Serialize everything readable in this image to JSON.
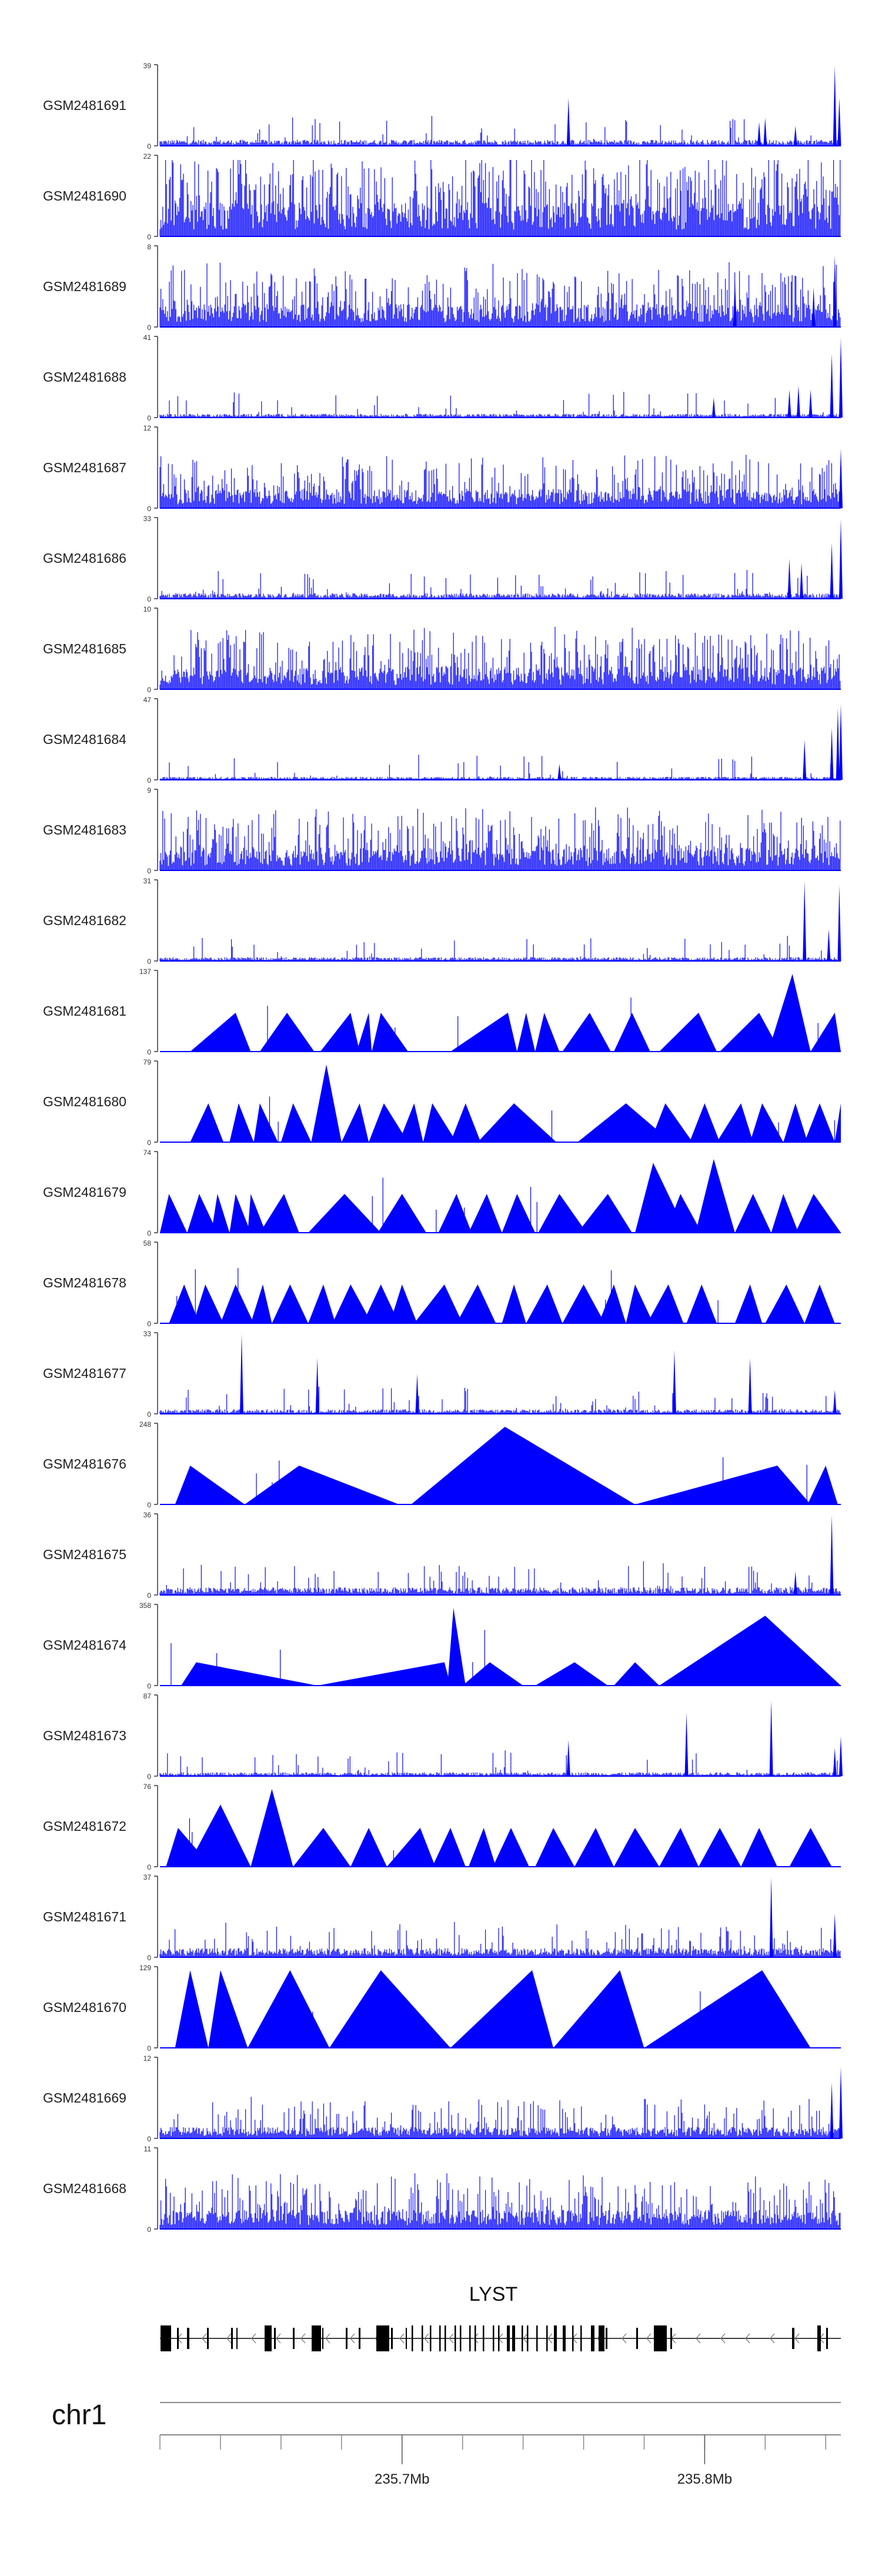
{
  "chart_data": {
    "type": "area",
    "title": "",
    "colors": {
      "signal": "#0000ff",
      "axis": "#000000",
      "gene": "#000000",
      "ideogram": "#888888",
      "label": "#222222"
    },
    "x_range": [
      235.62,
      235.845
    ],
    "tracks": [
      {
        "name": "GSM2481691",
        "ymax": "39",
        "ymin": "0",
        "style": "dense",
        "density": 0.06,
        "spikes": [
          [
            235.755,
            0.6
          ],
          [
            235.82,
            0.35
          ],
          [
            235.818,
            0.3
          ],
          [
            235.83,
            0.25
          ],
          [
            235.843,
            1.0
          ],
          [
            235.8445,
            0.6
          ]
        ],
        "baseline": 0.08
      },
      {
        "name": "GSM2481690",
        "ymax": "22",
        "ymin": "0",
        "style": "dense",
        "density": 0.5,
        "spikes": [],
        "baseline": 0.45
      },
      {
        "name": "GSM2481689",
        "ymax": "8",
        "ymin": "0",
        "style": "dense",
        "density": 0.35,
        "spikes": [
          [
            235.81,
            0.6
          ],
          [
            235.836,
            0.5
          ],
          [
            235.843,
            0.9
          ]
        ],
        "baseline": 0.3
      },
      {
        "name": "GSM2481688",
        "ymax": "41",
        "ymin": "0",
        "style": "dense",
        "density": 0.04,
        "spikes": [
          [
            235.803,
            0.25
          ],
          [
            235.828,
            0.35
          ],
          [
            235.831,
            0.4
          ],
          [
            235.835,
            0.35
          ],
          [
            235.842,
            0.8
          ],
          [
            235.845,
            1.0
          ]
        ],
        "baseline": 0.05
      },
      {
        "name": "GSM2481687",
        "ymax": "12",
        "ymin": "0",
        "style": "dense",
        "density": 0.3,
        "spikes": [
          [
            235.845,
            0.75
          ]
        ],
        "baseline": 0.25
      },
      {
        "name": "GSM2481686",
        "ymax": "33",
        "ymin": "0",
        "style": "dense",
        "density": 0.06,
        "spikes": [
          [
            235.828,
            0.5
          ],
          [
            235.832,
            0.45
          ],
          [
            235.842,
            0.7
          ],
          [
            235.845,
            1.0
          ]
        ],
        "baseline": 0.07
      },
      {
        "name": "GSM2481685",
        "ymax": "10",
        "ymin": "0",
        "style": "dense",
        "density": 0.35,
        "spikes": [],
        "baseline": 0.3
      },
      {
        "name": "GSM2481684",
        "ymax": "47",
        "ymin": "0",
        "style": "dense",
        "density": 0.04,
        "spikes": [
          [
            235.752,
            0.2
          ],
          [
            235.833,
            0.5
          ],
          [
            235.842,
            0.65
          ],
          [
            235.844,
            0.9
          ],
          [
            235.845,
            0.95
          ]
        ],
        "baseline": 0.04
      },
      {
        "name": "GSM2481683",
        "ymax": "9",
        "ymin": "0",
        "style": "dense",
        "density": 0.35,
        "spikes": [],
        "baseline": 0.3
      },
      {
        "name": "GSM2481682",
        "ymax": "31",
        "ymin": "0",
        "style": "dense",
        "density": 0.05,
        "spikes": [
          [
            235.833,
            1.0
          ],
          [
            235.841,
            0.4
          ],
          [
            235.8445,
            0.95
          ]
        ],
        "baseline": 0.05
      },
      {
        "name": "GSM2481681",
        "ymax": "137",
        "ymin": "0",
        "style": "peaks",
        "peaks": [
          [
            235.63,
            235.645,
            235.65
          ],
          [
            235.653,
            235.662,
            235.671
          ],
          [
            235.673,
            235.683,
            235.686
          ],
          [
            235.685,
            235.689,
            235.69
          ],
          [
            235.69,
            235.693,
            235.702
          ],
          [
            235.716,
            235.735,
            235.738
          ],
          [
            235.738,
            235.741,
            235.744
          ],
          [
            235.744,
            235.747,
            235.752
          ],
          [
            235.753,
            235.762,
            235.769
          ],
          [
            235.77,
            235.776,
            235.782
          ],
          [
            235.785,
            235.798,
            235.804
          ],
          [
            235.805,
            235.818,
            235.825
          ],
          [
            235.821,
            235.829,
            235.835
          ],
          [
            235.835,
            235.843,
            235.849
          ]
        ],
        "ph": [
          0.5,
          0.5,
          0.5,
          0.5,
          0.5,
          0.5,
          0.5,
          0.5,
          0.5,
          0.5,
          0.5,
          0.5,
          1.0,
          0.5
        ]
      },
      {
        "name": "GSM2481680",
        "ymax": "79",
        "ymin": "0",
        "style": "peaks",
        "peaks": [
          [
            235.63,
            235.636,
            235.641
          ],
          [
            235.643,
            235.646,
            235.651
          ],
          [
            235.651,
            235.653,
            235.659
          ],
          [
            235.66,
            235.664,
            235.67
          ],
          [
            235.67,
            235.675,
            235.68
          ],
          [
            235.68,
            235.686,
            235.689
          ],
          [
            235.689,
            235.694,
            235.702
          ],
          [
            235.699,
            235.704,
            235.707
          ],
          [
            235.707,
            235.71,
            235.718
          ],
          [
            235.716,
            235.721,
            235.726
          ],
          [
            235.725,
            235.737,
            235.751
          ],
          [
            235.758,
            235.774,
            235.789
          ],
          [
            235.782,
            235.787,
            235.796
          ],
          [
            235.795,
            235.8,
            235.805
          ],
          [
            235.804,
            235.812,
            235.816
          ],
          [
            235.815,
            235.819,
            235.826
          ],
          [
            235.826,
            235.83,
            235.834
          ],
          [
            235.833,
            235.838,
            235.843
          ],
          [
            235.843,
            235.845,
            235.849
          ]
        ],
        "ph": [
          0.5,
          0.5,
          0.5,
          0.5,
          1.0,
          0.5,
          0.5,
          0.5,
          0.5,
          0.5,
          0.5,
          0.5,
          0.5,
          0.5,
          0.5,
          0.5,
          0.5,
          0.5,
          0.5
        ]
      },
      {
        "name": "GSM2481679",
        "ymax": "74",
        "ymin": "0",
        "style": "peaks",
        "peaks": [
          [
            235.62,
            235.623,
            235.629
          ],
          [
            235.629,
            235.633,
            235.639
          ],
          [
            235.637,
            235.639,
            235.643
          ],
          [
            235.643,
            235.645,
            235.65
          ],
          [
            235.649,
            235.65,
            235.655
          ],
          [
            235.653,
            235.661,
            235.666
          ],
          [
            235.669,
            235.681,
            235.693
          ],
          [
            235.692,
            235.7,
            235.708
          ],
          [
            235.712,
            235.718,
            235.723
          ],
          [
            235.722,
            235.728,
            235.733
          ],
          [
            235.733,
            235.738,
            235.744
          ],
          [
            235.745,
            235.752,
            235.761
          ],
          [
            235.758,
            235.768,
            235.776
          ],
          [
            235.777,
            235.783,
            235.794
          ],
          [
            235.787,
            235.792,
            235.799
          ],
          [
            235.797,
            235.803,
            235.81
          ],
          [
            235.81,
            235.816,
            235.822
          ],
          [
            235.822,
            235.826,
            235.831
          ],
          [
            235.83,
            235.836,
            235.845
          ]
        ],
        "ph": [
          0.5,
          0.5,
          0.5,
          0.5,
          0.5,
          0.5,
          0.5,
          0.5,
          0.5,
          0.5,
          0.5,
          0.5,
          0.5,
          0.9,
          0.5,
          0.95,
          0.5,
          0.5,
          0.5
        ]
      },
      {
        "name": "GSM2481678",
        "ymax": "58",
        "ymin": "0",
        "style": "peaks",
        "peaks": [
          [
            235.623,
            235.628,
            235.633
          ],
          [
            235.631,
            235.635,
            235.641
          ],
          [
            235.64,
            235.645,
            235.651
          ],
          [
            235.65,
            235.654,
            235.657
          ],
          [
            235.657,
            235.663,
            235.669
          ],
          [
            235.669,
            235.674,
            235.678
          ],
          [
            235.677,
            235.683,
            235.69
          ],
          [
            235.687,
            235.693,
            235.699
          ],
          [
            235.696,
            235.7,
            235.705
          ],
          [
            235.704,
            235.714,
            235.72
          ],
          [
            235.718,
            235.725,
            235.731
          ],
          [
            235.733,
            235.737,
            235.741
          ],
          [
            235.741,
            235.748,
            235.753
          ],
          [
            235.753,
            235.76,
            235.767
          ],
          [
            235.765,
            235.77,
            235.774
          ],
          [
            235.774,
            235.777,
            235.783
          ],
          [
            235.781,
            235.788,
            235.793
          ],
          [
            235.794,
            235.799,
            235.804
          ],
          [
            235.81,
            235.815,
            235.819
          ],
          [
            235.82,
            235.827,
            235.833
          ],
          [
            235.833,
            235.838,
            235.843
          ]
        ],
        "ph": [
          0.5,
          0.5,
          0.5,
          0.5,
          0.5,
          0.5,
          0.5,
          0.5,
          0.5,
          0.5,
          0.5,
          0.5,
          0.5,
          0.5,
          0.5,
          0.5,
          0.5,
          0.5,
          0.5,
          0.5,
          0.5
        ]
      },
      {
        "name": "GSM2481677",
        "ymax": "33",
        "ymin": "0",
        "style": "dense",
        "density": 0.06,
        "spikes": [
          [
            235.647,
            1.0
          ],
          [
            235.672,
            0.7
          ],
          [
            235.705,
            0.5
          ],
          [
            235.79,
            0.8
          ],
          [
            235.815,
            0.7
          ],
          [
            235.843,
            0.3
          ]
        ],
        "baseline": 0.06
      },
      {
        "name": "GSM2481676",
        "ymax": "248",
        "ymin": "0",
        "style": "peaks",
        "peaks": [
          [
            235.625,
            235.63,
            235.648
          ],
          [
            235.648,
            235.666,
            235.699
          ],
          [
            235.703,
            235.734,
            235.777
          ],
          [
            235.777,
            235.824,
            235.835
          ],
          [
            235.834,
            235.84,
            235.844
          ]
        ],
        "ph": [
          0.5,
          0.5,
          1.0,
          0.5,
          0.5
        ]
      },
      {
        "name": "GSM2481675",
        "ymax": "36",
        "ymin": "0",
        "style": "dense",
        "density": 0.1,
        "spikes": [
          [
            235.842,
            1.0
          ],
          [
            235.83,
            0.3
          ]
        ],
        "baseline": 0.1
      },
      {
        "name": "GSM2481674",
        "ymax": "358",
        "ymin": "0",
        "style": "peaks",
        "peaks": [
          [
            235.627,
            235.632,
            235.672
          ],
          [
            235.672,
            235.714,
            235.716
          ],
          [
            235.715,
            235.717,
            235.721
          ],
          [
            235.72,
            235.729,
            235.74
          ],
          [
            235.744,
            235.757,
            235.768
          ],
          [
            235.77,
            235.777,
            235.785
          ],
          [
            235.785,
            235.82,
            235.85
          ]
        ],
        "ph": [
          0.3,
          0.3,
          1.0,
          0.3,
          0.3,
          0.3,
          0.9
        ]
      },
      {
        "name": "GSM2481673",
        "ymax": "87",
        "ymin": "0",
        "style": "dense",
        "density": 0.05,
        "spikes": [
          [
            235.755,
            0.45
          ],
          [
            235.794,
            0.8
          ],
          [
            235.822,
            0.95
          ],
          [
            235.843,
            0.35
          ],
          [
            235.845,
            0.5
          ]
        ],
        "baseline": 0.05
      },
      {
        "name": "GSM2481672",
        "ymax": "76",
        "ymin": "0",
        "style": "peaks",
        "peaks": [
          [
            235.622,
            235.626,
            235.637
          ],
          [
            235.629,
            235.64,
            235.65
          ],
          [
            235.65,
            235.657,
            235.664
          ],
          [
            235.664,
            235.674,
            235.683
          ],
          [
            235.683,
            235.689,
            235.695
          ],
          [
            235.695,
            235.706,
            235.711
          ],
          [
            235.71,
            235.716,
            235.721
          ],
          [
            235.722,
            235.727,
            235.731
          ],
          [
            235.73,
            235.736,
            235.742
          ],
          [
            235.744,
            235.75,
            235.757
          ],
          [
            235.757,
            235.764,
            235.77
          ],
          [
            235.77,
            235.777,
            235.785
          ],
          [
            235.785,
            235.792,
            235.798
          ],
          [
            235.798,
            235.805,
            235.812
          ],
          [
            235.812,
            235.818,
            235.824
          ],
          [
            235.828,
            235.835,
            235.842
          ]
        ],
        "ph": [
          0.5,
          0.8,
          1.0,
          0.5,
          0.5,
          0.5,
          0.5,
          0.5,
          0.5,
          0.5,
          0.5,
          0.5,
          0.5,
          0.5,
          0.5,
          0.5
        ]
      },
      {
        "name": "GSM2481671",
        "ymax": "37",
        "ymin": "0",
        "style": "dense",
        "density": 0.12,
        "spikes": [
          [
            235.822,
            1.0
          ],
          [
            235.843,
            0.55
          ]
        ],
        "baseline": 0.12
      },
      {
        "name": "GSM2481670",
        "ymax": "129",
        "ymin": "0",
        "style": "peaks",
        "peaks": [
          [
            235.625,
            235.63,
            235.636
          ],
          [
            235.636,
            235.64,
            235.649
          ],
          [
            235.649,
            235.663,
            235.676
          ],
          [
            235.676,
            235.693,
            235.716
          ],
          [
            235.716,
            235.743,
            235.75
          ],
          [
            235.75,
            235.772,
            235.78
          ],
          [
            235.78,
            235.819,
            235.835
          ]
        ],
        "ph": [
          1.0,
          1.0,
          1.0,
          1.0,
          1.0,
          1.0,
          1.0
        ]
      },
      {
        "name": "GSM2481669",
        "ymax": "12",
        "ymin": "0",
        "style": "dense",
        "density": 0.2,
        "spikes": [
          [
            235.842,
            0.7
          ],
          [
            235.845,
            0.9
          ]
        ],
        "baseline": 0.15
      },
      {
        "name": "GSM2481668",
        "ymax": "11",
        "ymin": "0",
        "style": "dense",
        "density": 0.3,
        "spikes": [],
        "baseline": 0.25
      }
    ],
    "gene": {
      "name": "LYST",
      "start": 235.62,
      "end": 235.845
    },
    "chromosome": "chr1",
    "ticks": [
      {
        "value": 235.7,
        "label": "235.7Mb"
      },
      {
        "value": 235.8,
        "label": "235.8Mb"
      }
    ],
    "minor_ticks": [
      235.62,
      235.64,
      235.66,
      235.68,
      235.7,
      235.72,
      235.74,
      235.76,
      235.78,
      235.8,
      235.82,
      235.84
    ]
  }
}
